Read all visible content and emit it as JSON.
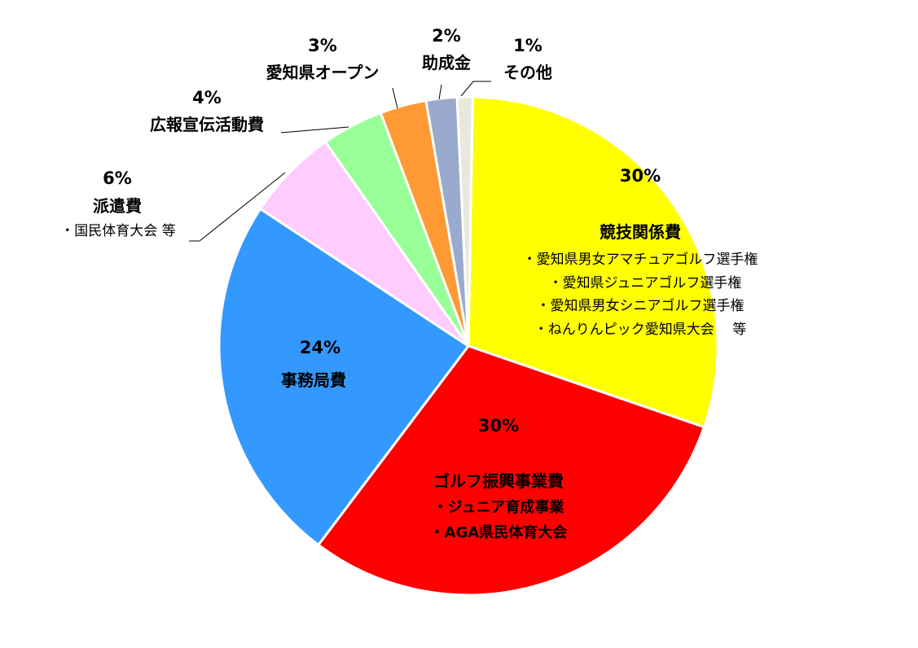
{
  "chart_data": {
    "type": "pie",
    "title": "",
    "slices": [
      {
        "name": "競技関係費",
        "value": 30,
        "value_label": "30%",
        "color": "#FFFF00",
        "notes": [
          "・愛知県男女アマチュアゴルフ選手権",
          "・愛知県ジュニアゴルフ選手権",
          "・愛知県男女シニアゴルフ選手権",
          "・ねんりんピック愛知県大会　 等"
        ]
      },
      {
        "name": "ゴルフ振興事業費",
        "value": 30,
        "value_label": "30%",
        "color": "#FF0000",
        "notes": [
          "・ジュニア育成事業",
          "・AGA県民体育大会"
        ]
      },
      {
        "name": "事務局費",
        "value": 24,
        "value_label": "24%",
        "color": "#3399FF",
        "notes": []
      },
      {
        "name": "派遣費",
        "value": 6,
        "value_label": "6%",
        "color": "#FFCCFF",
        "notes": [
          "・国民体育大会 等"
        ]
      },
      {
        "name": "広報宣伝活動費",
        "value": 4,
        "value_label": "4%",
        "color": "#99FF99",
        "notes": []
      },
      {
        "name": "愛知県オープン",
        "value": 3,
        "value_label": "3%",
        "color": "#FF9933",
        "notes": []
      },
      {
        "name": "助成金",
        "value": 2,
        "value_label": "2%",
        "color": "#99AACC",
        "notes": []
      },
      {
        "name": "その他",
        "value": 1,
        "value_label": "1%",
        "color": "#EAE8DC",
        "notes": []
      }
    ]
  }
}
